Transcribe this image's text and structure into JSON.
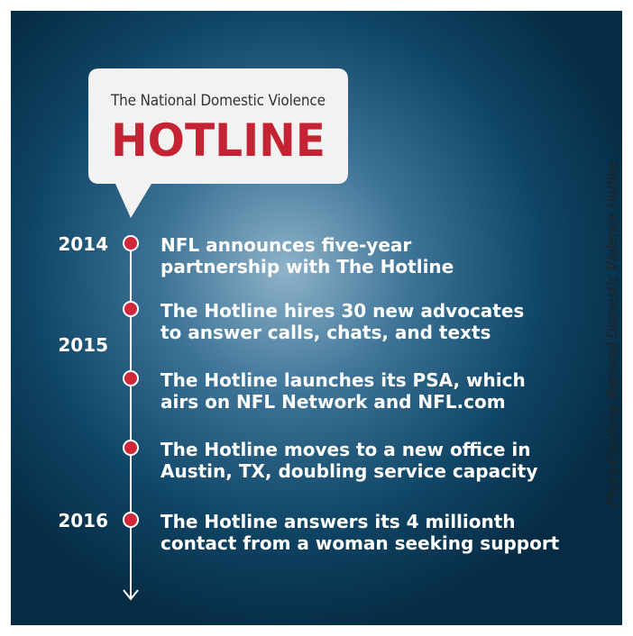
{
  "logo": {
    "line1": "The National Domestic Violence",
    "line2": "HOTLINE"
  },
  "credit": "Photo Courtesy National Domestic Violence Hotline",
  "years": [
    "2014",
    "2015",
    "2016"
  ],
  "events": [
    {
      "lines": [
        "NFL announces five-year",
        "partnership with The Hotline"
      ]
    },
    {
      "lines": [
        "The Hotline hires 30 new advocates",
        "to answer calls, chats, and texts"
      ]
    },
    {
      "lines": [
        "The Hotline launches its PSA, which",
        "airs on NFL Network and NFL.com"
      ]
    },
    {
      "lines": [
        "The Hotline moves to a new office in",
        "Austin, TX, doubling service capacity"
      ]
    },
    {
      "lines": [
        "The Hotline answers its 4 millionth",
        "contact from a woman seeking support"
      ]
    }
  ]
}
